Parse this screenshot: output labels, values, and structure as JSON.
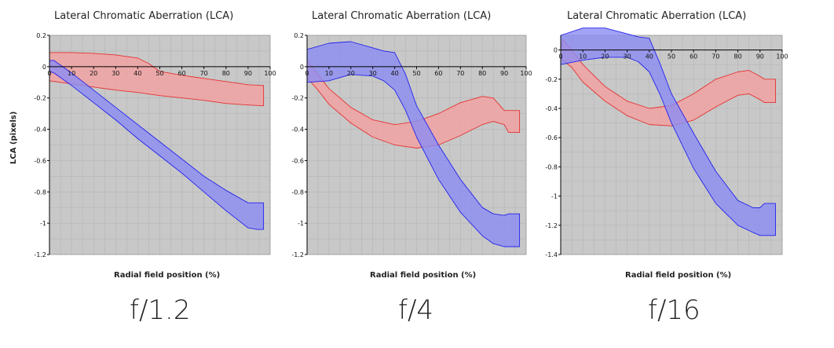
{
  "y_axis_label": "LCA (pixels)",
  "colors": {
    "red_band_fill": "#f4a0a0",
    "red_band_stroke": "#e33333",
    "blue_band_fill": "#8c8cf2",
    "blue_band_stroke": "#2323ee",
    "plot_bg": "#c8c8c8",
    "grid": "#b4b4b4"
  },
  "chart_data": [
    {
      "type": "area",
      "title": "Lateral Chromatic Aberration (LCA)",
      "xlabel": "Radial field position (%)",
      "ylabel": "LCA (pixels)",
      "caption": "f/1.2",
      "xlim": [
        0,
        100
      ],
      "ylim": [
        -1.2,
        0.2
      ],
      "x_ticks": [
        0,
        10,
        20,
        30,
        40,
        50,
        60,
        70,
        80,
        90,
        100
      ],
      "y_ticks": [
        0.2,
        0,
        -0.2,
        -0.4,
        -0.6,
        -0.8,
        -1,
        -1.2
      ],
      "grid": true,
      "series": [
        {
          "color": "red",
          "x": [
            0,
            10,
            20,
            30,
            40,
            45,
            50,
            60,
            70,
            80,
            90,
            97
          ],
          "upper": [
            0.09,
            0.09,
            0.085,
            0.075,
            0.055,
            0.02,
            -0.03,
            -0.055,
            -0.075,
            -0.095,
            -0.115,
            -0.12
          ],
          "lower": [
            -0.09,
            -0.11,
            -0.13,
            -0.15,
            -0.165,
            -0.175,
            -0.185,
            -0.2,
            -0.215,
            -0.235,
            -0.245,
            -0.25
          ]
        },
        {
          "color": "blue",
          "x": [
            0,
            2,
            5,
            10,
            20,
            30,
            40,
            50,
            60,
            70,
            80,
            90,
            94,
            97
          ],
          "upper": [
            0.04,
            0.04,
            0.01,
            -0.04,
            -0.15,
            -0.26,
            -0.37,
            -0.48,
            -0.59,
            -0.7,
            -0.79,
            -0.87,
            -0.87,
            -0.87
          ],
          "lower": [
            -0.03,
            -0.04,
            -0.07,
            -0.12,
            -0.23,
            -0.34,
            -0.46,
            -0.57,
            -0.68,
            -0.8,
            -0.92,
            -1.03,
            -1.04,
            -1.04
          ]
        }
      ]
    },
    {
      "type": "area",
      "title": "Lateral Chromatic Aberration (LCA)",
      "xlabel": "Radial field position (%)",
      "ylabel": "",
      "caption": "f/4",
      "xlim": [
        0,
        100
      ],
      "ylim": [
        -1.2,
        0.2
      ],
      "x_ticks": [
        0,
        10,
        20,
        30,
        40,
        50,
        60,
        70,
        80,
        90,
        100
      ],
      "y_ticks": [
        0.2,
        0,
        -0.2,
        -0.4,
        -0.6,
        -0.8,
        -1,
        -1.2
      ],
      "grid": true,
      "series": [
        {
          "color": "red",
          "x": [
            0,
            5,
            10,
            20,
            30,
            40,
            50,
            60,
            70,
            80,
            85,
            90,
            92,
            97
          ],
          "upper": [
            0.04,
            -0.05,
            -0.14,
            -0.26,
            -0.34,
            -0.37,
            -0.35,
            -0.3,
            -0.23,
            -0.19,
            -0.2,
            -0.28,
            -0.28,
            -0.28
          ],
          "lower": [
            -0.07,
            -0.15,
            -0.24,
            -0.36,
            -0.45,
            -0.5,
            -0.52,
            -0.5,
            -0.44,
            -0.37,
            -0.35,
            -0.37,
            -0.42,
            -0.42
          ]
        },
        {
          "color": "blue",
          "x": [
            0,
            10,
            20,
            30,
            35,
            40,
            45,
            50,
            60,
            70,
            80,
            85,
            90,
            92,
            97
          ],
          "upper": [
            0.11,
            0.15,
            0.16,
            0.12,
            0.1,
            0.09,
            -0.05,
            -0.25,
            -0.5,
            -0.72,
            -0.9,
            -0.94,
            -0.95,
            -0.94,
            -0.94
          ],
          "lower": [
            -0.1,
            -0.09,
            -0.05,
            -0.06,
            -0.09,
            -0.15,
            -0.28,
            -0.45,
            -0.72,
            -0.93,
            -1.08,
            -1.13,
            -1.15,
            -1.15,
            -1.15
          ]
        }
      ]
    },
    {
      "type": "area",
      "title": "Lateral Chromatic Aberration (LCA)",
      "xlabel": "Radial field position (%)",
      "ylabel": "",
      "caption": "f/16",
      "xlim": [
        0,
        100
      ],
      "ylim": [
        -1.4,
        0.1
      ],
      "x_ticks": [
        0,
        10,
        20,
        30,
        40,
        50,
        60,
        70,
        80,
        90,
        100
      ],
      "y_ticks": [
        0,
        -0.2,
        -0.4,
        -0.6,
        -0.8,
        -1,
        -1.2,
        -1.4
      ],
      "grid": true,
      "series": [
        {
          "color": "red",
          "x": [
            0,
            1,
            5,
            10,
            20,
            30,
            40,
            50,
            60,
            70,
            80,
            85,
            90,
            92,
            97
          ],
          "upper": [
            0.0,
            0.07,
            0.0,
            -0.1,
            -0.25,
            -0.35,
            -0.4,
            -0.38,
            -0.3,
            -0.2,
            -0.15,
            -0.14,
            -0.18,
            -0.2,
            -0.2
          ],
          "lower": [
            -0.05,
            -0.07,
            -0.12,
            -0.22,
            -0.35,
            -0.45,
            -0.51,
            -0.52,
            -0.48,
            -0.39,
            -0.31,
            -0.3,
            -0.34,
            -0.36,
            -0.36
          ]
        },
        {
          "color": "blue",
          "x": [
            0,
            10,
            20,
            30,
            35,
            40,
            45,
            50,
            60,
            70,
            80,
            87,
            90,
            92,
            97
          ],
          "upper": [
            0.1,
            0.15,
            0.15,
            0.11,
            0.09,
            0.08,
            -0.1,
            -0.3,
            -0.57,
            -0.83,
            -1.03,
            -1.08,
            -1.08,
            -1.05,
            -1.05
          ],
          "lower": [
            -0.1,
            -0.07,
            -0.05,
            -0.05,
            -0.08,
            -0.15,
            -0.31,
            -0.5,
            -0.81,
            -1.05,
            -1.2,
            -1.25,
            -1.27,
            -1.27,
            -1.27
          ]
        }
      ]
    }
  ]
}
